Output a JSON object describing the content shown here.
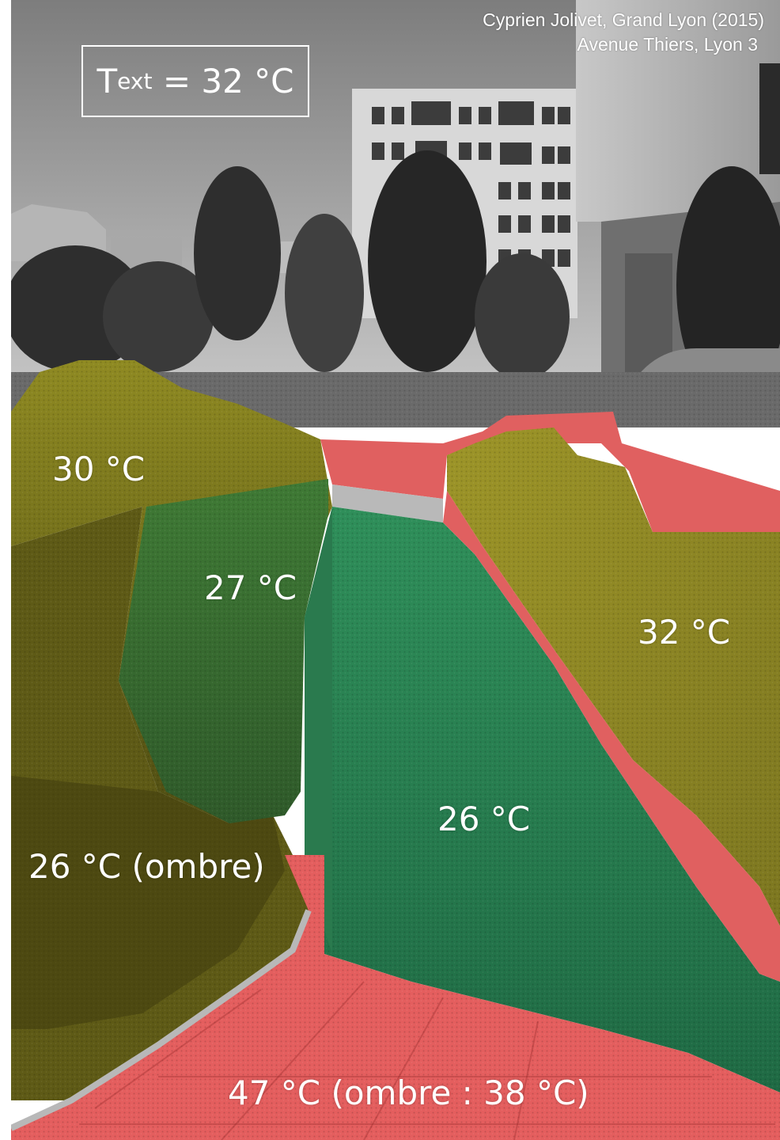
{
  "credit": {
    "line1": "Cyprien Jolivet, Grand Lyon (2015)",
    "line2": "Avenue Thiers, Lyon 3"
  },
  "ambient": {
    "symbol": "T",
    "subscript": "ext",
    "value": "= 32 °C"
  },
  "zones": {
    "vegetation_left": "30 °C",
    "lawn": "27 °C",
    "vegetation_right": "32 °C",
    "grass_path": "26 °C",
    "vegetation_shade": "26 °C (ombre)",
    "pavement": "47 °C (ombre : 38 °C)"
  },
  "colors": {
    "hot_surface": "#e85c5c",
    "medium_surface": "#c8c23c",
    "cool_surface": "#2a9a62"
  }
}
